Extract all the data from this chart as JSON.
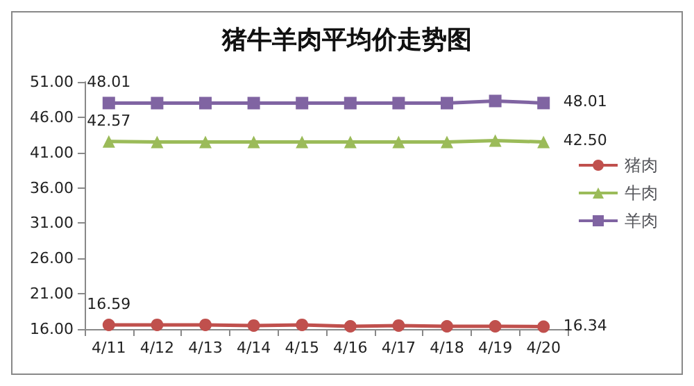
{
  "chart_data": {
    "type": "line",
    "title": "猪牛羊肉平均价走势图",
    "categories": [
      "4/11",
      "4/12",
      "4/13",
      "4/14",
      "4/15",
      "4/16",
      "4/17",
      "4/18",
      "4/19",
      "4/20"
    ],
    "series": [
      {
        "name": "猪肉",
        "color": "#c0504d",
        "marker": "circle",
        "values": [
          16.59,
          16.6,
          16.6,
          16.5,
          16.6,
          16.4,
          16.5,
          16.4,
          16.4,
          16.34
        ],
        "value_labels": [
          "16.59",
          null,
          null,
          null,
          null,
          null,
          null,
          null,
          null,
          "16.34"
        ]
      },
      {
        "name": "牛肉",
        "color": "#9bbb59",
        "marker": "triangle",
        "values": [
          42.57,
          42.5,
          42.5,
          42.5,
          42.5,
          42.5,
          42.5,
          42.5,
          42.7,
          42.5
        ],
        "value_labels": [
          "42.57",
          null,
          null,
          null,
          null,
          null,
          null,
          null,
          null,
          "42.50"
        ]
      },
      {
        "name": "羊肉",
        "color": "#8064a2",
        "marker": "square",
        "values": [
          48.01,
          48.0,
          48.0,
          48.0,
          48.0,
          48.0,
          48.0,
          48.0,
          48.3,
          48.01
        ],
        "value_labels": [
          "48.01",
          null,
          null,
          null,
          null,
          null,
          null,
          null,
          null,
          "48.01"
        ]
      }
    ],
    "ylim": [
      16,
      51
    ],
    "yticks": [
      {
        "value": 16,
        "label": "16.00"
      },
      {
        "value": 21,
        "label": "21.00"
      },
      {
        "value": 26,
        "label": "26.00"
      },
      {
        "value": 31,
        "label": "31.00"
      },
      {
        "value": 36,
        "label": "36.00"
      },
      {
        "value": 41,
        "label": "41.00"
      },
      {
        "value": 46,
        "label": "46.00"
      },
      {
        "value": 51,
        "label": "51.00"
      }
    ],
    "grid": false,
    "legend": "right"
  }
}
